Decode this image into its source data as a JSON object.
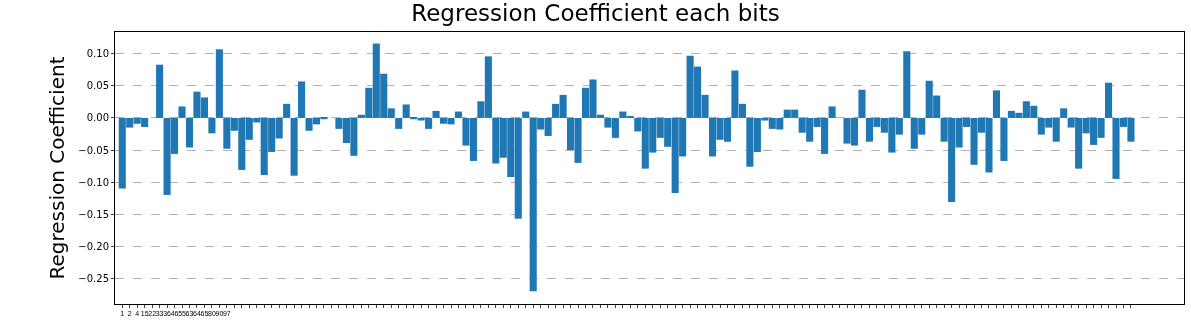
{
  "chart_data": {
    "type": "bar",
    "title": "Regression Coefficient each bits",
    "ylabel": "Regression Coefficient",
    "categories": [
      "1",
      "2",
      "4",
      "15",
      "22",
      "33",
      "36",
      "46",
      "55",
      "63",
      "64",
      "65",
      "80",
      "90",
      "97",
      null,
      null,
      null,
      null,
      null,
      null,
      null,
      null,
      null,
      null,
      null,
      null,
      null,
      null,
      null,
      null,
      null,
      null,
      null,
      null,
      null,
      null,
      null,
      null,
      null,
      null,
      null,
      null,
      null,
      null,
      null,
      null,
      null,
      null,
      null,
      null,
      null,
      null,
      null,
      null,
      null,
      null,
      null,
      null,
      null,
      null,
      null,
      null,
      null,
      null,
      null,
      null,
      null,
      null,
      null,
      null,
      null,
      null,
      null,
      null,
      null,
      null,
      null,
      null,
      null,
      null,
      null,
      null,
      null,
      null,
      null,
      null,
      null,
      null,
      null,
      null,
      null,
      null,
      null,
      null,
      null,
      null,
      null,
      null,
      null,
      null,
      null,
      null,
      null,
      null,
      null,
      null,
      null,
      null,
      null,
      null,
      null,
      null,
      null,
      null,
      null,
      null,
      null,
      null,
      null,
      null,
      null,
      null,
      null,
      null,
      null,
      null,
      null,
      null,
      null,
      null,
      null,
      null,
      null,
      null,
      null
    ],
    "values": [
      -0.11,
      -0.015,
      -0.009,
      -0.014,
      0,
      0.083,
      -0.12,
      -0.056,
      0.018,
      -0.046,
      0.041,
      0.032,
      -0.024,
      0.107,
      -0.048,
      -0.02,
      -0.081,
      -0.034,
      -0.007,
      -0.089,
      -0.053,
      -0.032,
      0.022,
      -0.09,
      0.057,
      -0.02,
      -0.01,
      -0.002,
      0,
      -0.017,
      -0.039,
      -0.059,
      0.005,
      0.047,
      0.116,
      0.069,
      0.015,
      -0.017,
      0.021,
      -0.002,
      -0.004,
      -0.017,
      0.011,
      -0.009,
      -0.01,
      0.01,
      -0.043,
      -0.067,
      0.026,
      0.096,
      -0.071,
      -0.062,
      -0.092,
      -0.157,
      0.01,
      -0.27,
      -0.018,
      -0.028,
      0.022,
      0.036,
      -0.05,
      -0.07,
      0.047,
      0.06,
      0.005,
      -0.015,
      -0.031,
      0.01,
      0.002,
      -0.021,
      -0.079,
      -0.054,
      -0.031,
      -0.045,
      -0.117,
      -0.06,
      0.097,
      0.08,
      0.036,
      -0.06,
      -0.034,
      -0.037,
      0.074,
      0.022,
      -0.076,
      -0.053,
      -0.004,
      -0.017,
      -0.018,
      0.013,
      0.013,
      -0.023,
      -0.037,
      -0.014,
      -0.056,
      0.018,
      0,
      -0.04,
      -0.043,
      0.044,
      -0.037,
      -0.014,
      -0.023,
      -0.054,
      -0.026,
      0.104,
      -0.048,
      -0.026,
      0.058,
      0.035,
      -0.037,
      -0.131,
      -0.046,
      -0.014,
      -0.073,
      -0.023,
      -0.085,
      0.043,
      -0.067,
      0.011,
      0.008,
      0.026,
      0.019,
      -0.026,
      -0.015,
      -0.037,
      0.015,
      -0.015,
      -0.079,
      -0.024,
      -0.042,
      -0.031,
      0.055,
      -0.095,
      -0.014,
      -0.037
    ],
    "color": "#1f77b4",
    "ylim": [
      -0.29,
      0.134
    ],
    "yticks": [
      {
        "value": -0.25,
        "label": "−0.25"
      },
      {
        "value": -0.2,
        "label": "−0.20"
      },
      {
        "value": -0.15,
        "label": "−0.15"
      },
      {
        "value": -0.1,
        "label": "−0.10"
      },
      {
        "value": -0.05,
        "label": "−0.05"
      },
      {
        "value": 0,
        "label": "0.00"
      },
      {
        "value": 0.05,
        "label": "0.05"
      },
      {
        "value": 0.1,
        "label": "0.10"
      }
    ],
    "grid": "y",
    "legend": false
  }
}
